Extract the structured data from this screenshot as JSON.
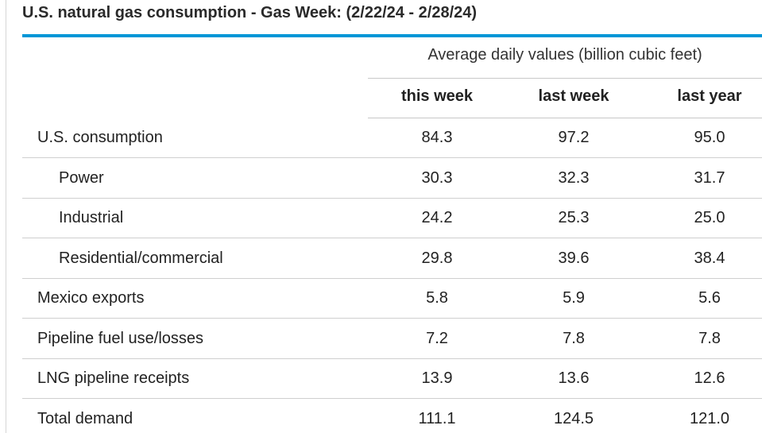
{
  "title": "U.S. natural gas consumption - Gas Week: (2/22/24 - 2/28/24)",
  "colors": {
    "accent_bar": "#0096d7",
    "rule": "#cfcfcf",
    "text": "#222222"
  },
  "chart_data": {
    "type": "table",
    "title": "U.S. natural gas consumption - Gas Week: (2/22/24 - 2/28/24)",
    "group_header": "Average daily values (billion cubic feet)",
    "columns": [
      "this week",
      "last week",
      "last year"
    ],
    "rows": [
      {
        "label": "U.S. consumption",
        "indent": 0,
        "values": [
          "84.3",
          "97.2",
          "95.0"
        ]
      },
      {
        "label": "Power",
        "indent": 1,
        "values": [
          "30.3",
          "32.3",
          "31.7"
        ]
      },
      {
        "label": "Industrial",
        "indent": 1,
        "values": [
          "24.2",
          "25.3",
          "25.0"
        ]
      },
      {
        "label": "Residential/commercial",
        "indent": 1,
        "values": [
          "29.8",
          "39.6",
          "38.4"
        ]
      },
      {
        "label": "Mexico exports",
        "indent": 0,
        "values": [
          "5.8",
          "5.9",
          "5.6"
        ]
      },
      {
        "label": "Pipeline fuel use/losses",
        "indent": 0,
        "values": [
          "7.2",
          "7.8",
          "7.8"
        ]
      },
      {
        "label": "LNG pipeline receipts",
        "indent": 0,
        "values": [
          "13.9",
          "13.6",
          "12.6"
        ]
      },
      {
        "label": "Total demand",
        "indent": 0,
        "values": [
          "111.1",
          "124.5",
          "121.0"
        ]
      }
    ]
  }
}
